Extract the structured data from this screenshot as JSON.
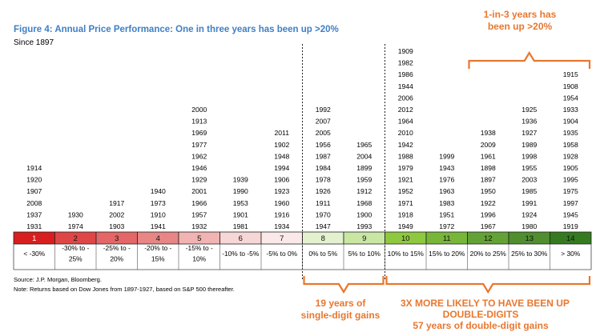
{
  "header": {
    "title": "Figure 4: Annual Price Performance: One in three years has been up >20%",
    "subtitle": "Since 1897"
  },
  "footer": {
    "source": "Source: J.P. Morgan, Bloomberg.",
    "note": "Note: Returns based on Dow Jones from 1897-1927, based on S&P 500 thereafter."
  },
  "annotations": {
    "top_line1": "1-in-3 years has",
    "top_line2": "been up >20%",
    "single_line1": "19 years of",
    "single_line2": "single-digit gains",
    "double_line1": "3X MORE LIKELY TO HAVE BEEN UP",
    "double_line2": "DOUBLE-DIGITS",
    "double_line3": "57 years of double-digit gains"
  },
  "colors": {
    "accent": "#e8772e",
    "title": "#3f7fc4",
    "bins": [
      "#d81e1e",
      "#df4747",
      "#e46666",
      "#e88585",
      "#f1b3b3",
      "#f7d6d6",
      "#fbe9e9",
      "#e3f1cf",
      "#c9e6a3",
      "#8ec83f",
      "#78b63a",
      "#63a236",
      "#508e2f",
      "#357a20"
    ]
  },
  "chart_data": {
    "type": "table",
    "title": "Figure 4: Annual Price Performance: One in three years has been up >20%",
    "bins": [
      {
        "n": "1",
        "range": [
          "< -30%"
        ],
        "years": [
          "1914",
          "1920",
          "1907",
          "2008",
          "1937",
          "1931"
        ]
      },
      {
        "n": "2",
        "range": [
          "-30% to -",
          "25%"
        ],
        "years": [
          "1930",
          "1974"
        ]
      },
      {
        "n": "3",
        "range": [
          "-25% to -",
          "20%"
        ],
        "years": [
          "1917",
          "2002",
          "1903"
        ]
      },
      {
        "n": "4",
        "range": [
          "-20% to -",
          "15%"
        ],
        "years": [
          "1940",
          "1973",
          "1910",
          "1941"
        ]
      },
      {
        "n": "5",
        "range": [
          "-15% to -",
          "10%"
        ],
        "years": [
          "2000",
          "1913",
          "1969",
          "1977",
          "1962",
          "1946",
          "1929",
          "2001",
          "1966",
          "1957",
          "1932"
        ]
      },
      {
        "n": "6",
        "range": [
          "-10% to -5%"
        ],
        "years": [
          "1939",
          "1990",
          "1953",
          "1901",
          "1981"
        ]
      },
      {
        "n": "7",
        "range": [
          "-5% to 0%"
        ],
        "years": [
          "2011",
          "1902",
          "1948",
          "1994",
          "1906",
          "1923",
          "1960",
          "1916",
          "1934"
        ]
      },
      {
        "n": "8",
        "range": [
          "0% to 5%"
        ],
        "years": [
          "1992",
          "2007",
          "2005",
          "1956",
          "1987",
          "1984",
          "1978",
          "1926",
          "1911",
          "1970",
          "1947"
        ]
      },
      {
        "n": "9",
        "range": [
          "5% to 10%"
        ],
        "years": [
          "1965",
          "2004",
          "1899",
          "1959",
          "1912",
          "1968",
          "1900",
          "1993"
        ]
      },
      {
        "n": "10",
        "range": [
          "10% to 15%"
        ],
        "years": [
          "1909",
          "1982",
          "1986",
          "1944",
          "2006",
          "2012",
          "1964",
          "2010",
          "1942",
          "1988",
          "1979",
          "1921",
          "1952",
          "1971",
          "1918",
          "1949"
        ]
      },
      {
        "n": "11",
        "range": [
          "15% to 20%"
        ],
        "years": [
          "1999",
          "1943",
          "1976",
          "1963",
          "1983",
          "1951",
          "1972"
        ]
      },
      {
        "n": "12",
        "range": [
          "20% to 25%"
        ],
        "years": [
          "1938",
          "2009",
          "1961",
          "1898",
          "1897",
          "1950",
          "1922",
          "1996",
          "1967"
        ]
      },
      {
        "n": "13",
        "range": [
          "25% to 30%"
        ],
        "years": [
          "1925",
          "1936",
          "1927",
          "1989",
          "1998",
          "1955",
          "2003",
          "1985",
          "1991",
          "1924",
          "1980"
        ]
      },
      {
        "n": "14",
        "range": [
          "> 30%"
        ],
        "years": [
          "1915",
          "1908",
          "1954",
          "1933",
          "1904",
          "1935",
          "1958",
          "1928",
          "1905",
          "1995",
          "1975",
          "1997",
          "1945",
          "1919"
        ]
      }
    ]
  }
}
